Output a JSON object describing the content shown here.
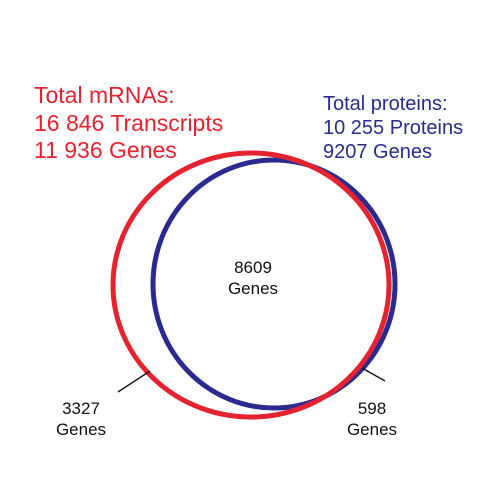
{
  "colors": {
    "mrna": "#e52330",
    "proteins": "#2a2a8f",
    "text": "#111111",
    "background": "#ffffff"
  },
  "mrna_set": {
    "title": "Total mRNAs:",
    "transcripts": "16 846 Transcripts",
    "genes": "11 936 Genes"
  },
  "protein_set": {
    "title": "Total proteins:",
    "proteins": "10 255 Proteins",
    "genes": "9207 Genes"
  },
  "overlap": {
    "count": "8609",
    "unit": "Genes"
  },
  "mrna_only": {
    "count": "3327",
    "unit": "Genes"
  },
  "protein_only": {
    "count": "598",
    "unit": "Genes"
  }
}
